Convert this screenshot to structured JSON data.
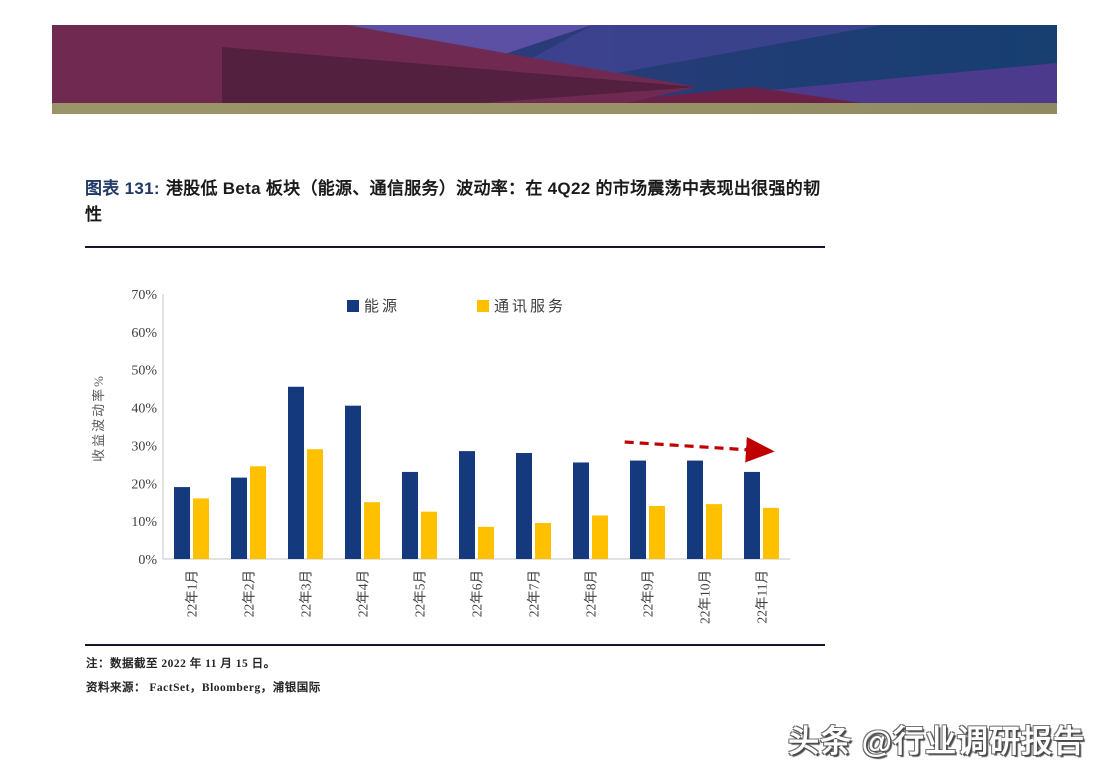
{
  "header": {
    "banner_colors": {
      "maroon": "#702a52",
      "dark_maroon": "#4e1e3c",
      "light_purple": "#5b50a4",
      "slate_purple": "#3f4390",
      "right_purple": "#4c3a8c",
      "navy_left": "#343a7c",
      "navy_right": "#173f70",
      "olive_strip": "#9b9469"
    }
  },
  "figure": {
    "label": "图表  131:",
    "title": "港股低 Beta 板块（能源、通信服务）波动率：在 4Q22 的市场震荡中表现出很强的韧性"
  },
  "chart_data": {
    "type": "bar",
    "title": "",
    "ylabel": "收益波动率%",
    "xlabel": "",
    "ylim": [
      0,
      70
    ],
    "yticks": [
      0,
      10,
      20,
      30,
      40,
      50,
      60,
      70
    ],
    "ytick_suffix": "%",
    "grid": "off",
    "legend_position": "top",
    "axis_color": "#d9d9d9",
    "categories": [
      "22年1月",
      "22年2月",
      "22年3月",
      "22年4月",
      "22年5月",
      "22年6月",
      "22年7月",
      "22年8月",
      "22年9月",
      "22年10月",
      "22年11月"
    ],
    "series": [
      {
        "name": "能源",
        "color": "#143A7D",
        "values": [
          19,
          21.5,
          45.5,
          40.5,
          23,
          28.5,
          28,
          25.5,
          26,
          26,
          23
        ]
      },
      {
        "name": "通讯服务",
        "color": "#FFC000",
        "values": [
          16,
          24.5,
          29,
          15,
          12.5,
          8.5,
          9.5,
          11.5,
          14,
          14.5,
          13.5
        ]
      }
    ],
    "annotation_arrow": {
      "from": {
        "x_index": 7.6,
        "value": 30.9
      },
      "to": {
        "x_index": 10.12,
        "value": 28.5
      },
      "color": "#C00000",
      "style": "dashed"
    }
  },
  "notes": {
    "note": "注：数据截至 2022 年 11 月 15 日。",
    "source": "资料来源：  FactSet，Bloomberg，浦银国际"
  },
  "watermark": "头条 @行业调研报告"
}
